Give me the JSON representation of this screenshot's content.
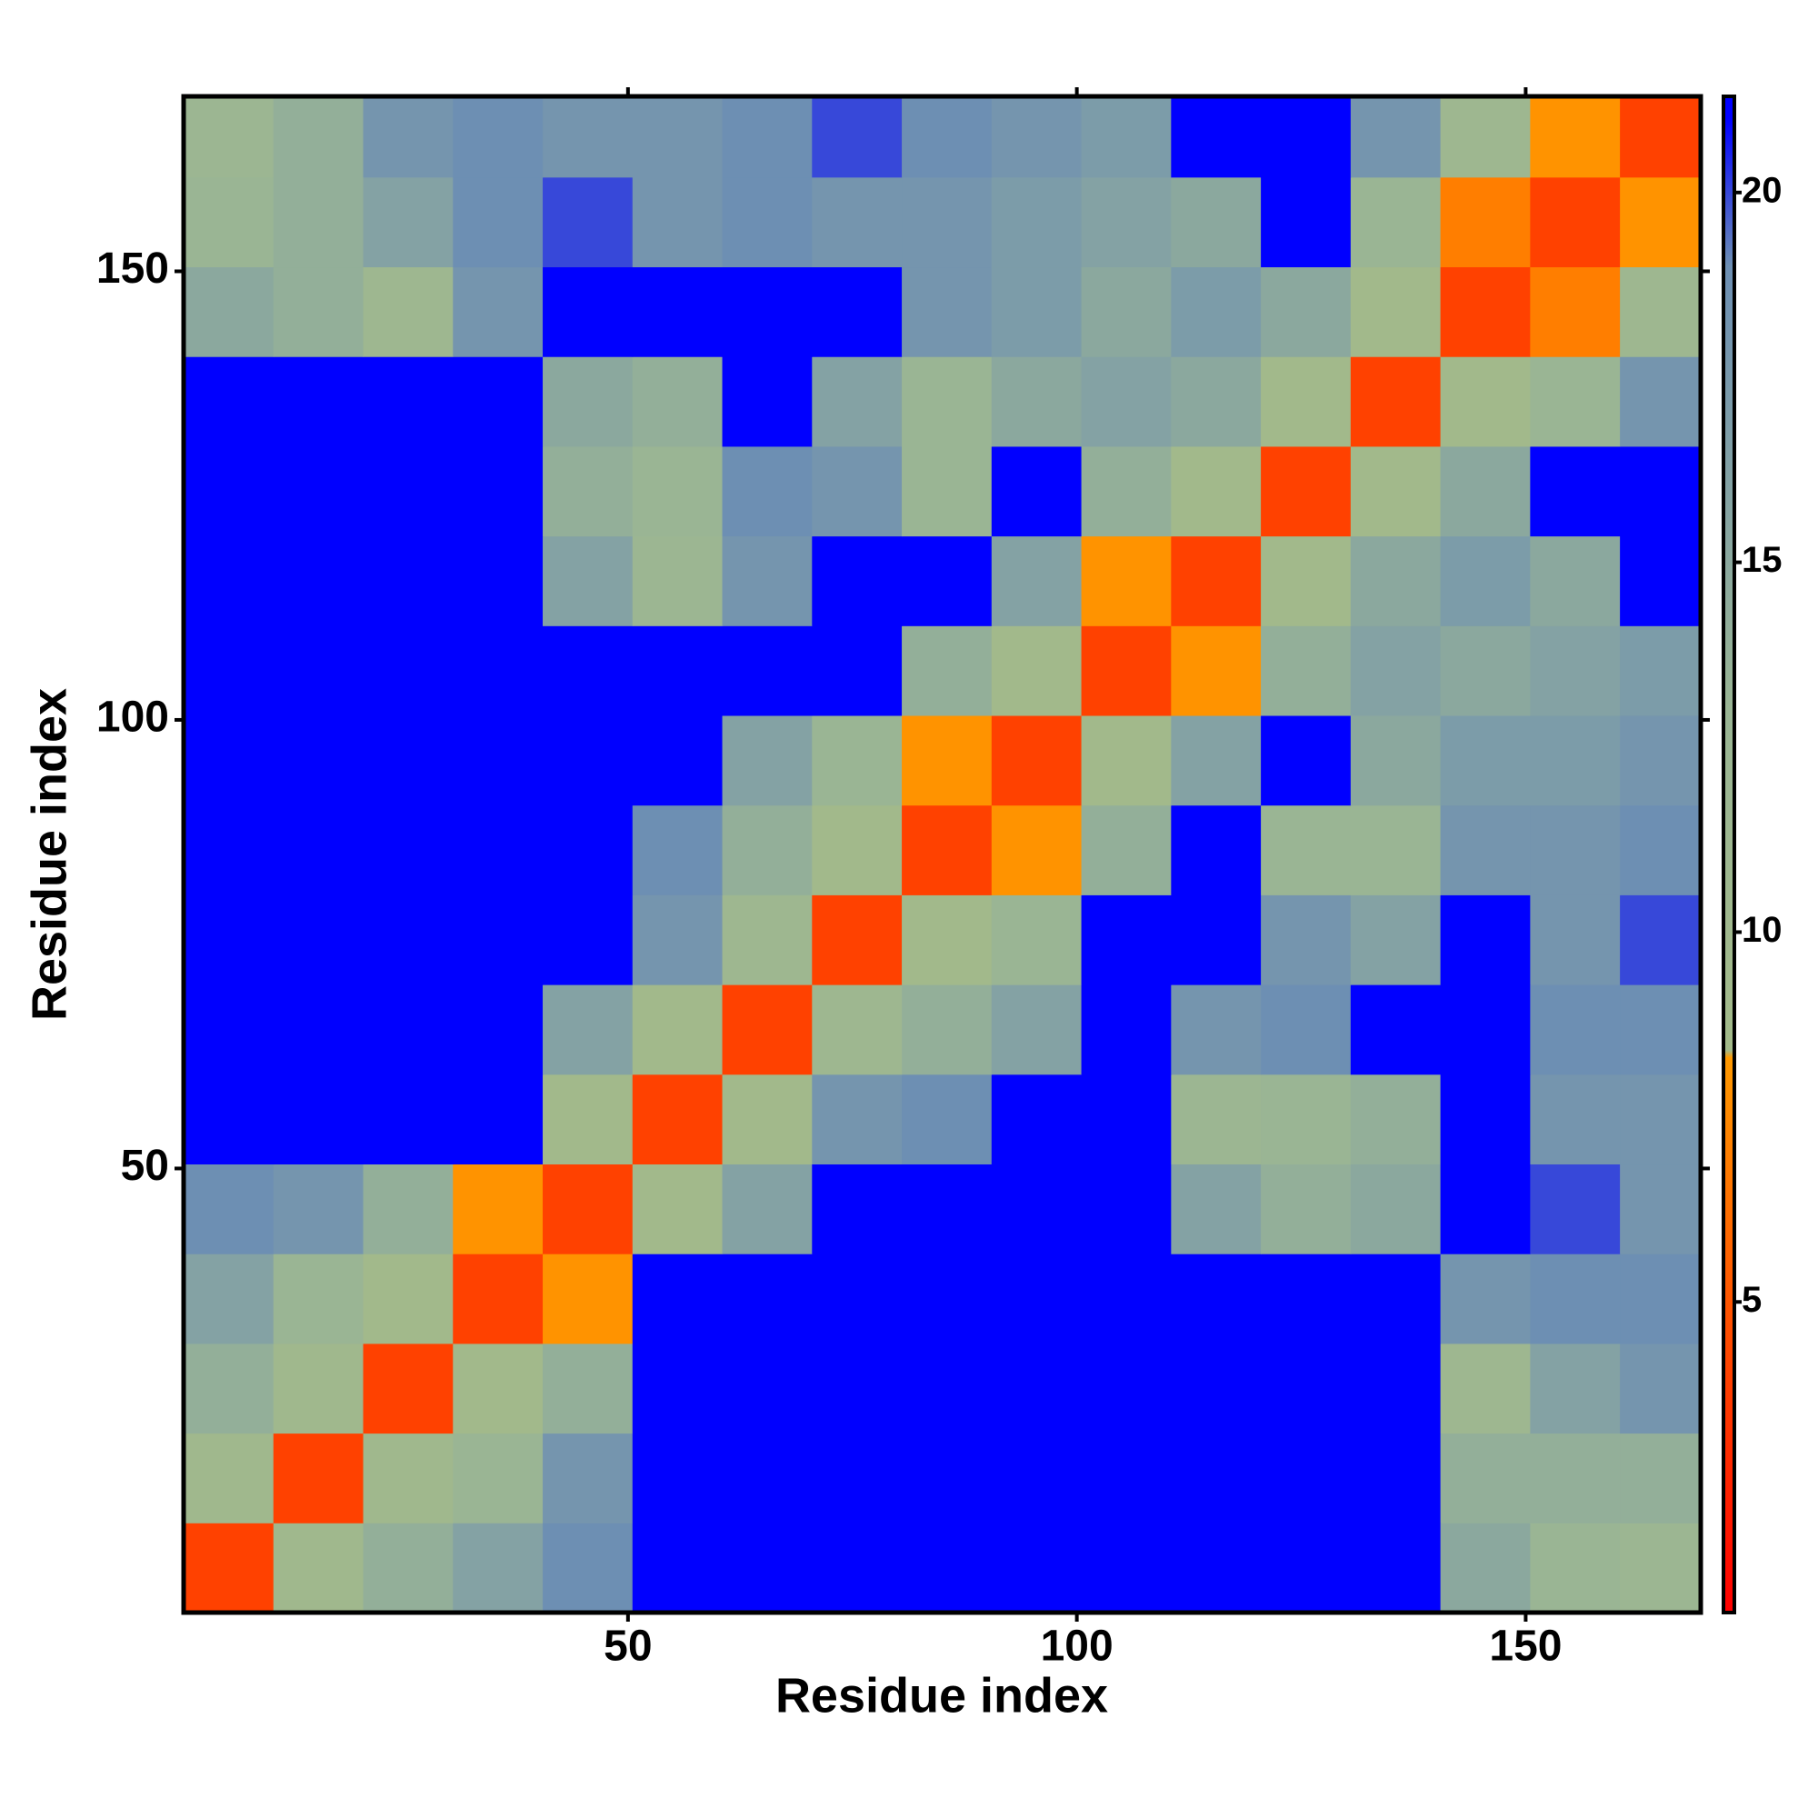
{
  "chart_data": {
    "type": "heatmap",
    "xlabel": "Residue index",
    "ylabel": "Residue index",
    "bins": [
      0.5,
      10.5,
      20.5,
      30.5,
      40.5,
      50.5,
      60.5,
      70.5,
      80.5,
      90.5,
      100.5,
      110.5,
      120.5,
      130.5,
      140.5,
      150.5,
      160.5,
      169.5
    ],
    "z": [
      [
        4,
        10,
        14,
        16,
        19,
        21,
        21,
        21,
        21,
        21,
        21,
        21,
        21,
        21,
        15,
        13,
        12
      ],
      [
        10,
        4,
        10,
        13,
        18,
        21,
        21,
        21,
        21,
        21,
        21,
        21,
        21,
        21,
        14,
        14,
        14
      ],
      [
        14,
        10,
        4,
        9,
        14,
        21,
        21,
        21,
        21,
        21,
        21,
        21,
        21,
        21,
        11,
        16,
        18
      ],
      [
        16,
        13,
        9,
        4,
        8,
        21,
        21,
        21,
        21,
        21,
        21,
        21,
        21,
        21,
        18,
        19,
        19
      ],
      [
        19,
        18,
        14,
        8,
        4,
        9,
        16,
        21,
        21,
        21,
        21,
        16,
        14,
        15,
        21,
        20,
        18
      ],
      [
        21,
        21,
        21,
        21,
        9,
        4,
        9,
        18,
        19,
        21,
        21,
        12,
        13,
        14,
        21,
        18,
        18
      ],
      [
        21,
        21,
        21,
        21,
        16,
        9,
        4,
        11,
        14,
        16,
        21,
        18,
        19,
        21,
        21,
        19,
        19
      ],
      [
        21,
        21,
        21,
        21,
        21,
        18,
        11,
        4,
        9,
        13,
        21,
        21,
        18,
        16,
        21,
        18,
        20
      ],
      [
        21,
        21,
        21,
        21,
        21,
        19,
        14,
        9,
        4,
        8,
        14,
        21,
        13,
        13,
        18,
        18,
        19
      ],
      [
        21,
        21,
        21,
        21,
        21,
        21,
        16,
        13,
        8,
        4,
        9,
        16,
        21,
        15,
        17,
        17,
        18
      ],
      [
        21,
        21,
        21,
        21,
        21,
        21,
        21,
        21,
        14,
        9,
        4,
        8,
        14,
        16,
        15,
        16,
        17
      ],
      [
        21,
        21,
        21,
        21,
        16,
        12,
        18,
        21,
        21,
        16,
        8,
        4,
        9,
        15,
        17,
        15,
        21
      ],
      [
        21,
        21,
        21,
        21,
        14,
        13,
        19,
        18,
        13,
        21,
        14,
        9,
        4,
        9,
        15,
        21,
        21
      ],
      [
        21,
        21,
        21,
        21,
        15,
        14,
        21,
        16,
        13,
        15,
        16,
        15,
        9,
        4,
        9,
        13,
        18
      ],
      [
        15,
        14,
        11,
        18,
        21,
        21,
        21,
        21,
        18,
        17,
        15,
        17,
        15,
        9,
        4,
        7,
        11
      ],
      [
        13,
        14,
        16,
        19,
        20,
        18,
        19,
        18,
        18,
        17,
        16,
        15,
        21,
        13,
        7,
        4,
        8
      ],
      [
        12,
        14,
        18,
        19,
        18,
        18,
        19,
        20,
        19,
        18,
        17,
        21,
        21,
        18,
        11,
        8,
        4
      ]
    ],
    "xlim": [
      0.5,
      169.5
    ],
    "ylim": [
      0.5,
      169.5
    ],
    "xticks": [
      50,
      100,
      150
    ],
    "yticks": [
      50,
      100,
      150
    ],
    "colorscale": [
      [
        0.8,
        "#ff0000"
      ],
      [
        5,
        "#ff5500"
      ],
      [
        8.3,
        "#ff9900"
      ],
      [
        8.4,
        "#a3ba8a"
      ],
      [
        13,
        "#9ab594"
      ],
      [
        19,
        "#6d8fb3"
      ],
      [
        21,
        "#0000ff"
      ],
      [
        21.3,
        "#0000ff"
      ]
    ],
    "colorbar_lim": [
      0.8,
      21.3
    ],
    "colorbar_ticks": [
      5,
      10,
      15,
      20
    ]
  }
}
